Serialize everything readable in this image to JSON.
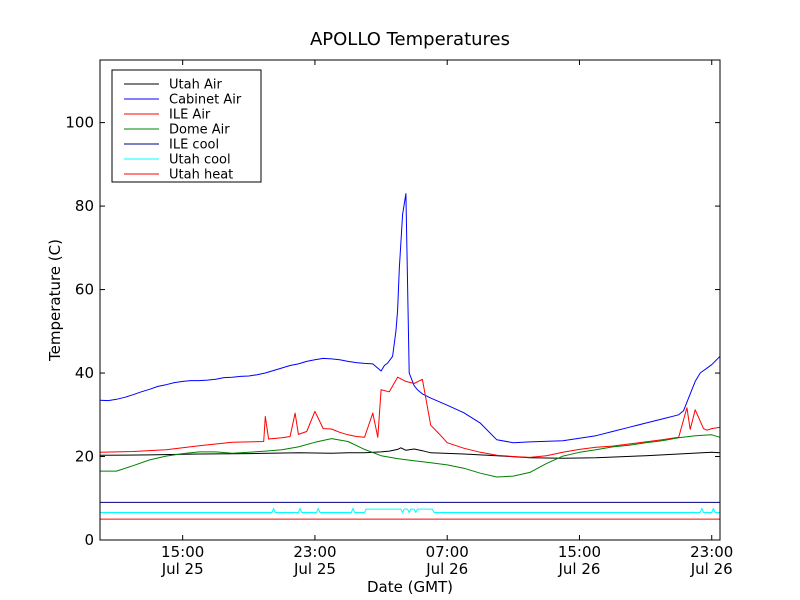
{
  "chart_data": {
    "type": "line",
    "title": "APOLLO Temperatures",
    "xlabel": "Date (GMT)",
    "ylabel": "Temperature (C)",
    "x_units": "hours since Jul 25 10:00 GMT",
    "xlim": [
      0,
      37.5
    ],
    "ylim": [
      0,
      115
    ],
    "yticks": [
      0,
      20,
      40,
      60,
      80,
      100
    ],
    "xticks": [
      {
        "x": 5,
        "time": "15:00",
        "date": "Jul 25"
      },
      {
        "x": 13,
        "time": "23:00",
        "date": "Jul 25"
      },
      {
        "x": 21,
        "time": "07:00",
        "date": "Jul 26"
      },
      {
        "x": 29,
        "time": "15:00",
        "date": "Jul 26"
      },
      {
        "x": 37,
        "time": "23:00",
        "date": "Jul 26"
      }
    ],
    "legend_position": "top-left",
    "series": [
      {
        "name": "Utah Air",
        "color": "#000000",
        "x": [
          0,
          3,
          6,
          9,
          12,
          14,
          15,
          16,
          17,
          17.5,
          18,
          18.2,
          18.5,
          19,
          19.5,
          20,
          22,
          24,
          26,
          28,
          30,
          33,
          35,
          37,
          37.5
        ],
        "y": [
          20.3,
          20.4,
          20.6,
          20.7,
          20.9,
          20.8,
          20.9,
          20.9,
          21.1,
          21.3,
          21.7,
          22.1,
          21.5,
          21.8,
          21.4,
          20.9,
          20.6,
          20.2,
          19.7,
          19.6,
          19.7,
          20.2,
          20.6,
          21,
          20.9
        ]
      },
      {
        "name": "Cabinet Air",
        "color": "#0000ff",
        "x": [
          0,
          0.5,
          1,
          1.5,
          2,
          2.5,
          3,
          3.5,
          4,
          4.5,
          5,
          5.5,
          6,
          6.5,
          7,
          7.5,
          8,
          8.5,
          9,
          9.5,
          10,
          10.5,
          11,
          11.5,
          12,
          12.5,
          13,
          13.5,
          14,
          14.5,
          15,
          15.5,
          16,
          16.5,
          17,
          17.2,
          17.4,
          17.7,
          17.9,
          18.0,
          18.1,
          18.3,
          18.5,
          18.7,
          18.9,
          19,
          19.2,
          19.5,
          20,
          21,
          22,
          23,
          24,
          25,
          26,
          28,
          30,
          31,
          32,
          33,
          34,
          35,
          35.3,
          35.8,
          36,
          36.3,
          37,
          37.5
        ],
        "y": [
          33.5,
          33.4,
          33.7,
          34.2,
          34.8,
          35.5,
          36.1,
          36.8,
          37.2,
          37.7,
          38,
          38.2,
          38.2,
          38.3,
          38.5,
          38.9,
          39,
          39.2,
          39.3,
          39.6,
          40,
          40.6,
          41.2,
          41.8,
          42.2,
          42.8,
          43.2,
          43.5,
          43.4,
          43.2,
          42.8,
          42.5,
          42.3,
          42.2,
          40.5,
          41.8,
          42.4,
          44,
          50,
          55,
          65,
          78,
          83,
          40,
          38,
          37,
          36,
          35,
          34,
          32.3,
          30.5,
          28,
          24,
          23.3,
          23.5,
          23.8,
          25,
          26,
          27,
          28,
          29,
          30,
          31,
          36,
          38,
          40,
          42,
          44
        ]
      },
      {
        "name": "ILE Air",
        "color": "#ff0000",
        "x": [
          0,
          2,
          4,
          5,
          6,
          7,
          8,
          9,
          9.9,
          10,
          10.2,
          11,
          11.5,
          11.8,
          12,
          12.5,
          13,
          13.5,
          14,
          14.5,
          15,
          15.5,
          16,
          16.5,
          16.8,
          17,
          17.5,
          18,
          18.5,
          19,
          19.5,
          20,
          20.5,
          21,
          22,
          23,
          24,
          25,
          26,
          27,
          28,
          29,
          30,
          31,
          32,
          33,
          34,
          35,
          35.5,
          35.7,
          36,
          36.5,
          36.7,
          37,
          37.5
        ],
        "y": [
          21,
          21.2,
          21.6,
          22.1,
          22.6,
          23,
          23.4,
          23.5,
          23.6,
          29.6,
          24.2,
          24.5,
          24.8,
          30.4,
          25.3,
          26,
          30.8,
          26.7,
          26.6,
          25.8,
          25.2,
          24.8,
          24.6,
          30.4,
          24.6,
          36,
          35.5,
          39,
          38,
          37.5,
          38.5,
          27.5,
          25.5,
          23.3,
          22,
          21,
          20.3,
          20,
          19.8,
          20.2,
          21,
          21.7,
          22.2,
          22.5,
          23,
          23.5,
          24,
          24.6,
          31.7,
          26.5,
          31.2,
          26.7,
          26.3,
          26.7,
          27
        ]
      },
      {
        "name": "Dome Air",
        "color": "#008000",
        "x": [
          0,
          1,
          2,
          3,
          4,
          5,
          6,
          7,
          8,
          9,
          10,
          11,
          12,
          13,
          14,
          15,
          16,
          17,
          18,
          19,
          20,
          21,
          22,
          23,
          24,
          25,
          26,
          27,
          28,
          29,
          30,
          31,
          32,
          33,
          34,
          35,
          36,
          37,
          37.5
        ],
        "y": [
          16.5,
          16.5,
          17.8,
          19.2,
          20.1,
          20.7,
          21.1,
          21.1,
          20.8,
          21,
          21.3,
          21.6,
          22.3,
          23.4,
          24.3,
          23.6,
          21.7,
          20.2,
          19.5,
          19,
          18.5,
          18,
          17.2,
          16,
          15.1,
          15.3,
          16.2,
          18.3,
          20.1,
          21,
          21.6,
          22.3,
          22.7,
          23.3,
          23.8,
          24.5,
          25,
          25.2,
          24.6
        ]
      },
      {
        "name": "ILE cool",
        "color": "#000080",
        "x": [
          0,
          37.5
        ],
        "y": [
          9,
          9
        ]
      },
      {
        "name": "Utah cool",
        "color": "#00ffff",
        "x": [
          0,
          10.4,
          10.5,
          10.6,
          12,
          12.1,
          12.2,
          13.1,
          13.2,
          13.3,
          15.2,
          15.3,
          15.4,
          16,
          16.1,
          18.2,
          18.3,
          18.4,
          18.6,
          18.7,
          18.8,
          19,
          19.1,
          19.2,
          19.4,
          19.6,
          20.1,
          20.2,
          36.3,
          36.4,
          36.5,
          37,
          37.1,
          37.2,
          37.5
        ],
        "y": [
          6.6,
          6.6,
          7.6,
          6.6,
          6.6,
          7.6,
          6.6,
          6.6,
          7.6,
          6.6,
          6.6,
          7.6,
          6.6,
          6.6,
          7.4,
          7.4,
          6.6,
          7.4,
          7.4,
          6.6,
          7.4,
          7.4,
          6.6,
          7.4,
          7.4,
          7.4,
          7.4,
          6.6,
          6.6,
          7.6,
          6.6,
          6.6,
          7.6,
          6.6,
          6.6
        ]
      },
      {
        "name": "Utah heat",
        "color": "#ff0000",
        "x": [
          0,
          37.5
        ],
        "y": [
          5,
          5
        ]
      }
    ]
  }
}
